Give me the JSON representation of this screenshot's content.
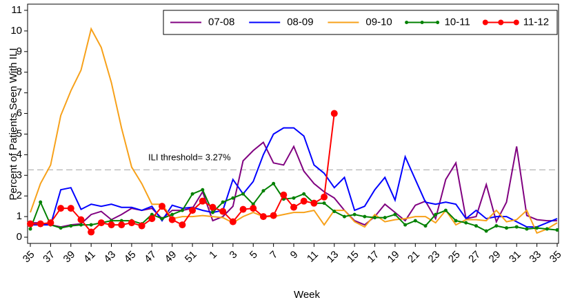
{
  "chart_data": {
    "type": "line",
    "y_label": "Percent of Patients Seen With ILI",
    "x_label": "Week",
    "annotation": "ILI threshold= 3.27%",
    "threshold": 3.27,
    "categories": [
      "35",
      null,
      "37",
      null,
      "39",
      null,
      "41",
      null,
      "43",
      null,
      "45",
      null,
      "47",
      null,
      "49",
      null,
      "51",
      null,
      "1",
      null,
      "3",
      null,
      "5",
      null,
      "7",
      null,
      "9",
      null,
      "11",
      null,
      "13",
      null,
      "15",
      null,
      "17",
      null,
      "19",
      null,
      "21",
      null,
      "23",
      null,
      "25",
      null,
      "27",
      null,
      "29",
      null,
      "31",
      null,
      "33",
      null,
      "35"
    ],
    "ylim": [
      -0.3,
      11.3
    ],
    "yticks": [
      0,
      1,
      2,
      3,
      4,
      5,
      6,
      7,
      8,
      9,
      10,
      11
    ],
    "legend": "top-right",
    "series": [
      {
        "name": "07-08",
        "color": "#800080",
        "markers": false,
        "values": [
          0.7,
          0.7,
          0.6,
          0.5,
          0.6,
          0.65,
          1.1,
          1.25,
          0.85,
          1.1,
          1.4,
          1.3,
          1.4,
          0.9,
          1.3,
          1.3,
          1.4,
          2.2,
          0.8,
          1.0,
          1.5,
          3.7,
          4.2,
          4.6,
          3.6,
          3.5,
          4.4,
          3.2,
          2.6,
          2.2,
          1.9,
          1.3,
          0.8,
          0.6,
          1.0,
          1.6,
          1.2,
          0.8,
          1.55,
          1.75,
          0.9,
          2.8,
          3.6,
          0.9,
          1.0,
          2.55,
          0.75,
          1.7,
          4.4,
          1.05,
          0.85,
          0.8,
          0.8
        ]
      },
      {
        "name": "08-09",
        "color": "#0000ff",
        "markers": false,
        "values": [
          0.6,
          0.6,
          0.6,
          2.3,
          2.4,
          1.35,
          1.6,
          1.5,
          1.6,
          1.45,
          1.45,
          1.3,
          1.5,
          0.8,
          1.55,
          1.4,
          1.45,
          1.3,
          1.2,
          1.3,
          2.8,
          2.1,
          2.7,
          4.0,
          5.0,
          5.3,
          5.3,
          4.9,
          3.5,
          3.1,
          2.4,
          2.9,
          1.3,
          1.5,
          2.3,
          2.9,
          1.8,
          3.9,
          2.8,
          1.7,
          1.6,
          1.7,
          1.6,
          0.9,
          1.3,
          0.9,
          1.0,
          1.0,
          0.75,
          0.5,
          0.5,
          0.7,
          0.9
        ]
      },
      {
        "name": "09-10",
        "color": "#f7a11a",
        "markers": false,
        "values": [
          1.2,
          2.6,
          3.5,
          5.9,
          7.1,
          8.1,
          10.1,
          9.2,
          7.5,
          5.3,
          3.4,
          2.6,
          1.6,
          1.6,
          0.9,
          1.0,
          1.0,
          1.05,
          1.0,
          0.95,
          0.7,
          1.0,
          1.2,
          1.0,
          1.0,
          1.1,
          1.2,
          1.2,
          1.3,
          0.6,
          1.3,
          1.3,
          0.75,
          0.5,
          1.1,
          0.75,
          0.85,
          0.9,
          1.0,
          1.0,
          0.7,
          1.3,
          0.6,
          0.85,
          0.85,
          0.8,
          1.3,
          0.75,
          0.85,
          1.3,
          0.2,
          0.4,
          0.7
        ]
      },
      {
        "name": "10-11",
        "color": "#008000",
        "markers": true,
        "values": [
          0.4,
          1.7,
          0.6,
          0.45,
          0.55,
          0.6,
          0.6,
          0.7,
          0.8,
          0.8,
          0.8,
          0.65,
          1.1,
          0.9,
          1.1,
          1.3,
          2.1,
          2.3,
          1.2,
          1.7,
          1.9,
          2.1,
          1.6,
          2.25,
          2.6,
          1.85,
          1.9,
          2.1,
          1.65,
          1.65,
          1.25,
          1.0,
          1.1,
          1.0,
          0.95,
          0.95,
          1.1,
          0.6,
          0.8,
          0.55,
          1.1,
          1.3,
          0.8,
          0.7,
          0.55,
          0.3,
          0.55,
          0.45,
          0.5,
          0.4,
          0.45,
          0.4,
          0.35
        ]
      },
      {
        "name": "11-12",
        "color": "#ff0000",
        "markers": true,
        "values": [
          0.65,
          0.65,
          0.7,
          1.4,
          1.4,
          0.85,
          0.25,
          0.7,
          0.6,
          0.6,
          0.7,
          0.55,
          0.9,
          1.5,
          0.85,
          0.6,
          1.3,
          1.75,
          1.45,
          1.25,
          0.75,
          1.35,
          1.4,
          1.0,
          1.05,
          2.05,
          1.45,
          1.75,
          1.65,
          1.95,
          6.0,
          null,
          null,
          null,
          null,
          null,
          null,
          null,
          null,
          null,
          null,
          null,
          null,
          null,
          null,
          null,
          null,
          null,
          null,
          null,
          null,
          null,
          null
        ]
      }
    ]
  }
}
